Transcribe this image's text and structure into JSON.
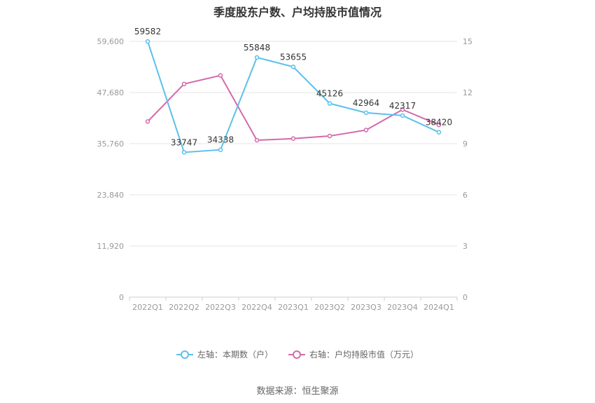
{
  "title": "季度股东户数、户均持股市值情况",
  "source": "数据来源：恒生聚源",
  "legend": {
    "left": "左轴：本期数（户）",
    "right": "右轴：户均持股市值（万元）"
  },
  "colors": {
    "left_series": "#5bc0eb",
    "right_series": "#d46aae",
    "grid": "#e6e6e6",
    "axis": "#cccccc"
  },
  "chart_data": {
    "type": "line",
    "categories": [
      "2022Q1",
      "2022Q2",
      "2022Q3",
      "2022Q4",
      "2023Q1",
      "2023Q2",
      "2023Q3",
      "2023Q4",
      "2024Q1"
    ],
    "y_left": {
      "ticks": [
        "0",
        "11,920",
        "23,840",
        "35,760",
        "47,680",
        "59,600"
      ],
      "range": [
        0,
        59600
      ]
    },
    "y_right": {
      "ticks": [
        "0",
        "3",
        "6",
        "9",
        "12",
        "15"
      ],
      "range": [
        0,
        15
      ]
    },
    "series": [
      {
        "name": "左轴：本期数（户）",
        "axis": "left",
        "values": [
          59582,
          33747,
          34338,
          55848,
          53655,
          45126,
          42964,
          42317,
          38420
        ],
        "labels": [
          "59582",
          "33747",
          "34338",
          "55848",
          "53655",
          "45126",
          "42964",
          "42317",
          "38420"
        ]
      },
      {
        "name": "右轴：户均持股市值（万元）",
        "axis": "right",
        "values": [
          10.3,
          12.5,
          13.0,
          9.2,
          9.3,
          9.45,
          9.8,
          11.0,
          10.1
        ]
      }
    ]
  }
}
